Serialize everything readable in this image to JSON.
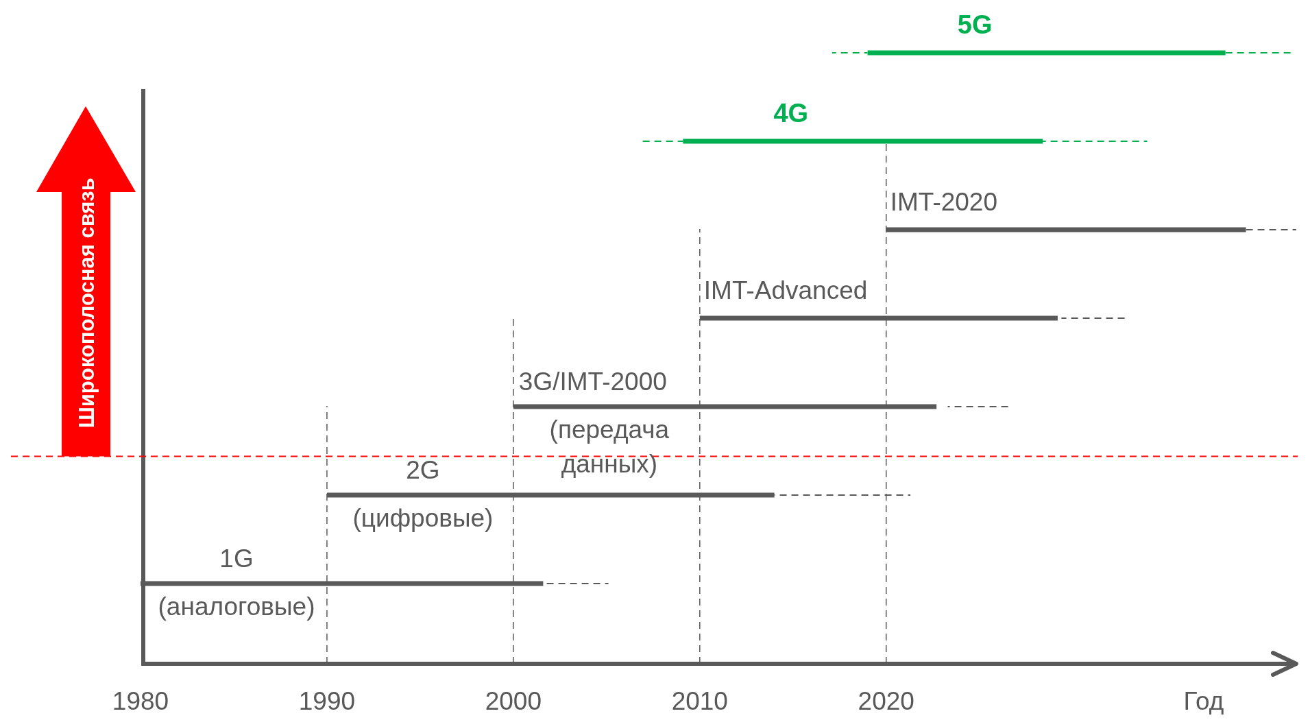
{
  "chart_data": {
    "type": "bar",
    "orientation": "horizontal",
    "xlabel": "Год",
    "categories": [
      "5G",
      "4G",
      "IMT-2020",
      "IMT-Advanced",
      "3G/IMT-2000\n(передача\nданных)",
      "2G\n(цифровые)",
      "1G\n(аналоговые)"
    ],
    "xlim": [
      1980,
      2042
    ],
    "xticks": [
      1980,
      1990,
      2000,
      2010,
      2020
    ],
    "series": [
      {
        "base": [
          2019,
          2009.1,
          2020,
          2010,
          2000,
          1990,
          1980
        ],
        "values": [
          19.2,
          19.3,
          19.3,
          19.2,
          22.7,
          24,
          21.6
        ],
        "colors": [
          "#00b050",
          "#00b050",
          "#595959",
          "#595959",
          "#595959",
          "#595959",
          "#595959"
        ]
      },
      {
        "type": "bar",
        "line_style": "dashed",
        "base": [
          2038.2,
          2028.4,
          2039.3,
          2029.4,
          2023.3,
          2014,
          2001.6
        ],
        "values": [
          3.6,
          5.6,
          2.7,
          3.5,
          3.4,
          7.3,
          3.5
        ],
        "colors": [
          "#00b050",
          "#00b050",
          "#595959",
          "#595959",
          "#595959",
          "#595959",
          "#595959"
        ]
      },
      {
        "type": "bar",
        "line_style": "dashed",
        "base": [
          2017.1,
          2006.7,
          null,
          null,
          null,
          null,
          null
        ],
        "values": [
          1.9,
          2.4,
          null,
          null,
          null,
          null,
          null
        ],
        "colors": [
          "#00b050",
          "#00b050",
          null,
          null,
          null,
          null,
          null
        ]
      }
    ],
    "ref_lines": [
      {
        "axis": "x",
        "value": 1980,
        "color": "#595959",
        "line_style": "solid"
      },
      {
        "axis": "x",
        "value": 1990,
        "color": "#595959",
        "line_style": "dashed"
      },
      {
        "axis": "x",
        "value": 2000,
        "color": "#595959",
        "line_style": "dashed"
      },
      {
        "axis": "x",
        "value": 2010,
        "color": "#595959",
        "line_style": "dashed"
      },
      {
        "axis": "x",
        "value": 2020,
        "color": "#595959",
        "line_style": "dashed"
      },
      {
        "axis": "y",
        "value": "2G\n(цифровые)",
        "color": "#ff0000",
        "line_style": "dashed"
      }
    ],
    "annotations": [
      "Широкополосная связь"
    ]
  }
}
